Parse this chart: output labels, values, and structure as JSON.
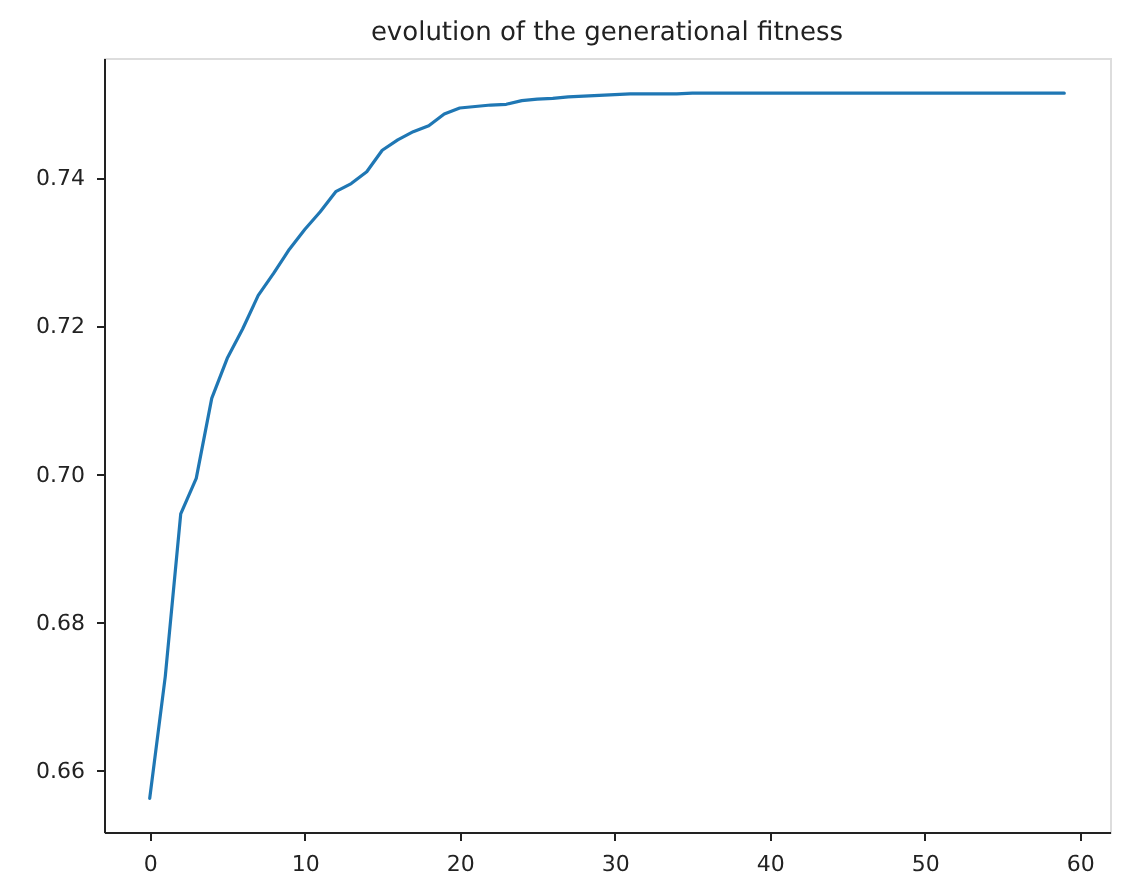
{
  "chart_data": {
    "type": "line",
    "title": "evolution of the generational fitness",
    "x": [
      0,
      1,
      2,
      3,
      4,
      5,
      6,
      7,
      8,
      9,
      10,
      11,
      12,
      13,
      14,
      15,
      16,
      17,
      18,
      19,
      20,
      21,
      22,
      23,
      24,
      25,
      26,
      27,
      28,
      29,
      30,
      31,
      32,
      33,
      34,
      35,
      36,
      37,
      38,
      39,
      40,
      41,
      42,
      43,
      44,
      45,
      46,
      47,
      48,
      49,
      50,
      51,
      52,
      53,
      54,
      55,
      56,
      57,
      58,
      59
    ],
    "series": [
      {
        "color": "#1f77b4",
        "values": [
          0.6563,
          0.6727,
          0.6947,
          0.6995,
          0.7103,
          0.7157,
          0.7197,
          0.7242,
          0.7272,
          0.7304,
          0.7331,
          0.7355,
          0.7382,
          0.7393,
          0.7409,
          0.7438,
          0.7452,
          0.7463,
          0.7471,
          0.7487,
          0.7495,
          0.7497,
          0.7499,
          0.75,
          0.7505,
          0.7507,
          0.7508,
          0.751,
          0.7511,
          0.7512,
          0.7513,
          0.7514,
          0.7514,
          0.7514,
          0.7514,
          0.7515,
          0.7515,
          0.7515,
          0.7515,
          0.7515,
          0.7515,
          0.7515,
          0.7515,
          0.7515,
          0.7515,
          0.7515,
          0.7515,
          0.7515,
          0.7515,
          0.7515,
          0.7515,
          0.7515,
          0.7515,
          0.7515,
          0.7515,
          0.7515,
          0.7515,
          0.7515,
          0.7515,
          0.7515
        ]
      }
    ],
    "xlim": [
      -2.95,
      61.95
    ],
    "ylim": [
      0.65175,
      0.75625
    ],
    "xticks": [
      0,
      10,
      20,
      30,
      40,
      50,
      60
    ],
    "yticks": [
      {
        "value": 0.66,
        "label": "0.66"
      },
      {
        "value": 0.68,
        "label": "0.68"
      },
      {
        "value": 0.7,
        "label": "0.70"
      },
      {
        "value": 0.72,
        "label": "0.72"
      },
      {
        "value": 0.74,
        "label": "0.74"
      }
    ],
    "grid": false
  }
}
